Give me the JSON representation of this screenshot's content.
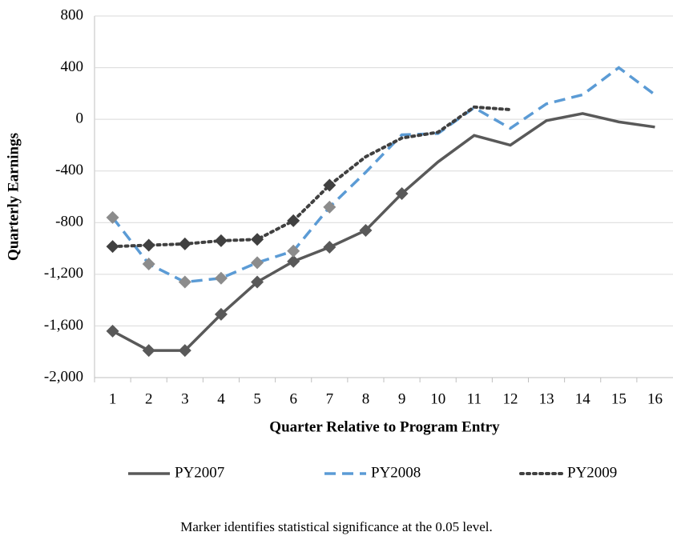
{
  "chart_data": {
    "type": "line",
    "y_label": "Quarterly Earnings",
    "x_label": "Quarter Relative to Program Entry",
    "footnote": "Marker identifies statistical significance at the 0.05 level.",
    "categories": [
      1,
      2,
      3,
      4,
      5,
      6,
      7,
      8,
      9,
      10,
      11,
      12,
      13,
      14,
      15,
      16
    ],
    "ylim": [
      -2000,
      800
    ],
    "yticks": [
      {
        "value": -2000,
        "label": "-2,000"
      },
      {
        "value": -1600,
        "label": "-1,600"
      },
      {
        "value": -1200,
        "label": "-1,200"
      },
      -800,
      -400,
      0,
      400,
      800
    ],
    "grid": true,
    "legend": "bottom",
    "series": [
      {
        "name": "PY2007",
        "color": "#595959",
        "style": "solid",
        "marker_color": "#595959",
        "values": [
          -1640,
          -1790,
          -1790,
          -1510,
          -1260,
          -1100,
          -990,
          -860,
          -575,
          -330,
          -125,
          -200,
          -10,
          45,
          -20,
          -60
        ],
        "markers": [
          true,
          true,
          true,
          true,
          true,
          true,
          true,
          true,
          true,
          false,
          false,
          false,
          false,
          false,
          false,
          false
        ]
      },
      {
        "name": "PY2008",
        "color": "#5b9bd5",
        "style": "dashed",
        "marker_color": "#8c8c8c",
        "values": [
          -760,
          -1120,
          -1260,
          -1230,
          -1110,
          -1020,
          -680,
          -410,
          -120,
          -110,
          90,
          -70,
          120,
          190,
          400,
          190
        ],
        "markers": [
          true,
          true,
          true,
          true,
          true,
          true,
          true,
          false,
          false,
          false,
          false,
          false,
          false,
          false,
          false,
          false
        ]
      },
      {
        "name": "PY2009",
        "color": "#404040",
        "style": "dotted",
        "marker_color": "#404040",
        "values": [
          -985,
          -975,
          -965,
          -940,
          -930,
          -785,
          -510,
          -290,
          -145,
          -100,
          95,
          75,
          null,
          null,
          null,
          null
        ],
        "markers": [
          true,
          true,
          true,
          true,
          true,
          true,
          true,
          false,
          false,
          false,
          false,
          false,
          false,
          false,
          false,
          false
        ]
      }
    ]
  }
}
